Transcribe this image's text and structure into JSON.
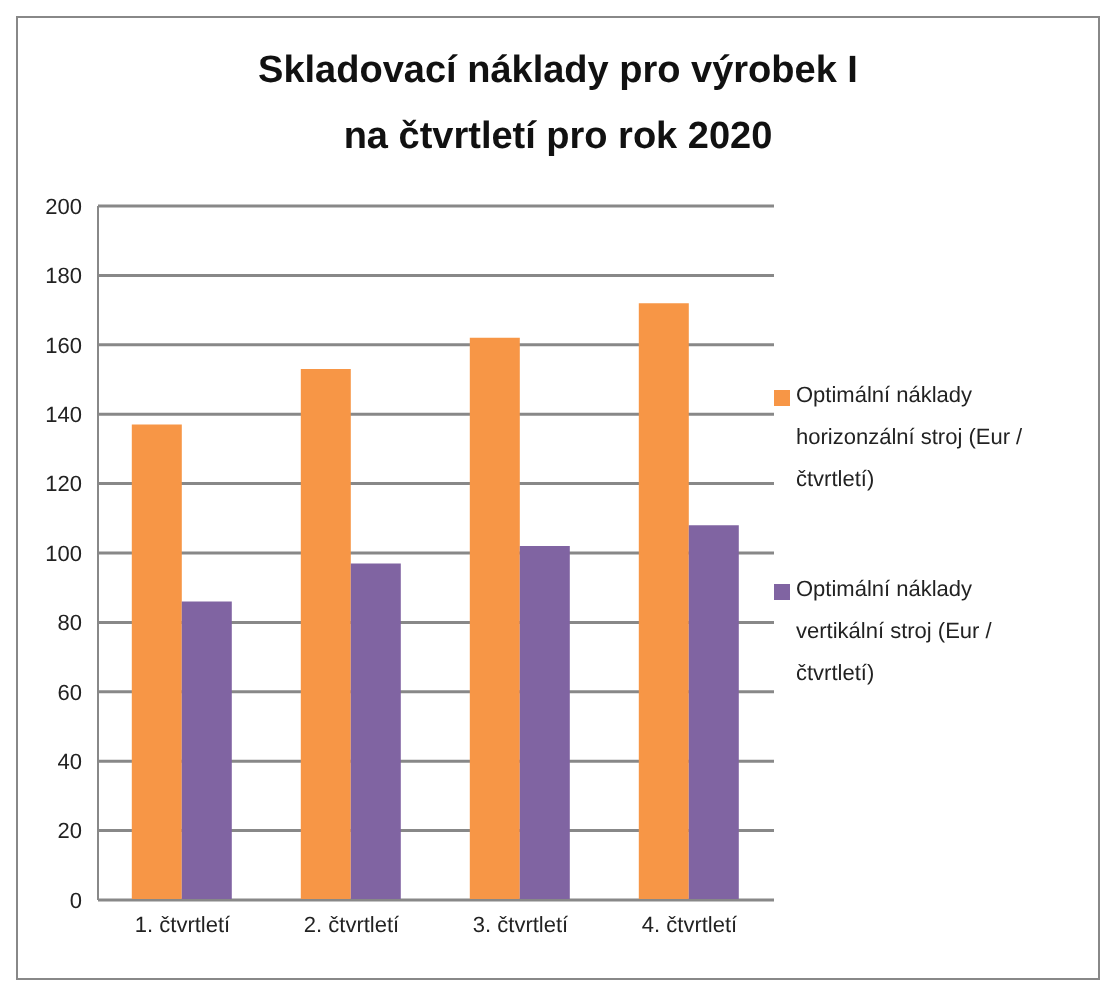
{
  "chart_data": {
    "type": "bar",
    "title": "Skladovací náklady pro výrobek I na čtvrtletí pro rok 2020",
    "categories": [
      "1. čtvrtletí",
      "2. čtvrtletí",
      "3. čtvrtletí",
      "4. čtvrtletí"
    ],
    "series": [
      {
        "name": "Optimální náklady horizonzální stroj (Eur / čtvrtletí)",
        "color": "#f79646",
        "values": [
          137,
          153,
          162,
          172
        ]
      },
      {
        "name": "Optimální náklady vertikální stroj (Eur / čtvrtletí)",
        "color": "#8064a2",
        "values": [
          86,
          97,
          102,
          108
        ]
      }
    ],
    "ylim": [
      0,
      200
    ],
    "yticks": [
      0,
      20,
      40,
      60,
      80,
      100,
      120,
      140,
      160,
      180,
      200
    ],
    "grid": "y",
    "legend": "right"
  }
}
